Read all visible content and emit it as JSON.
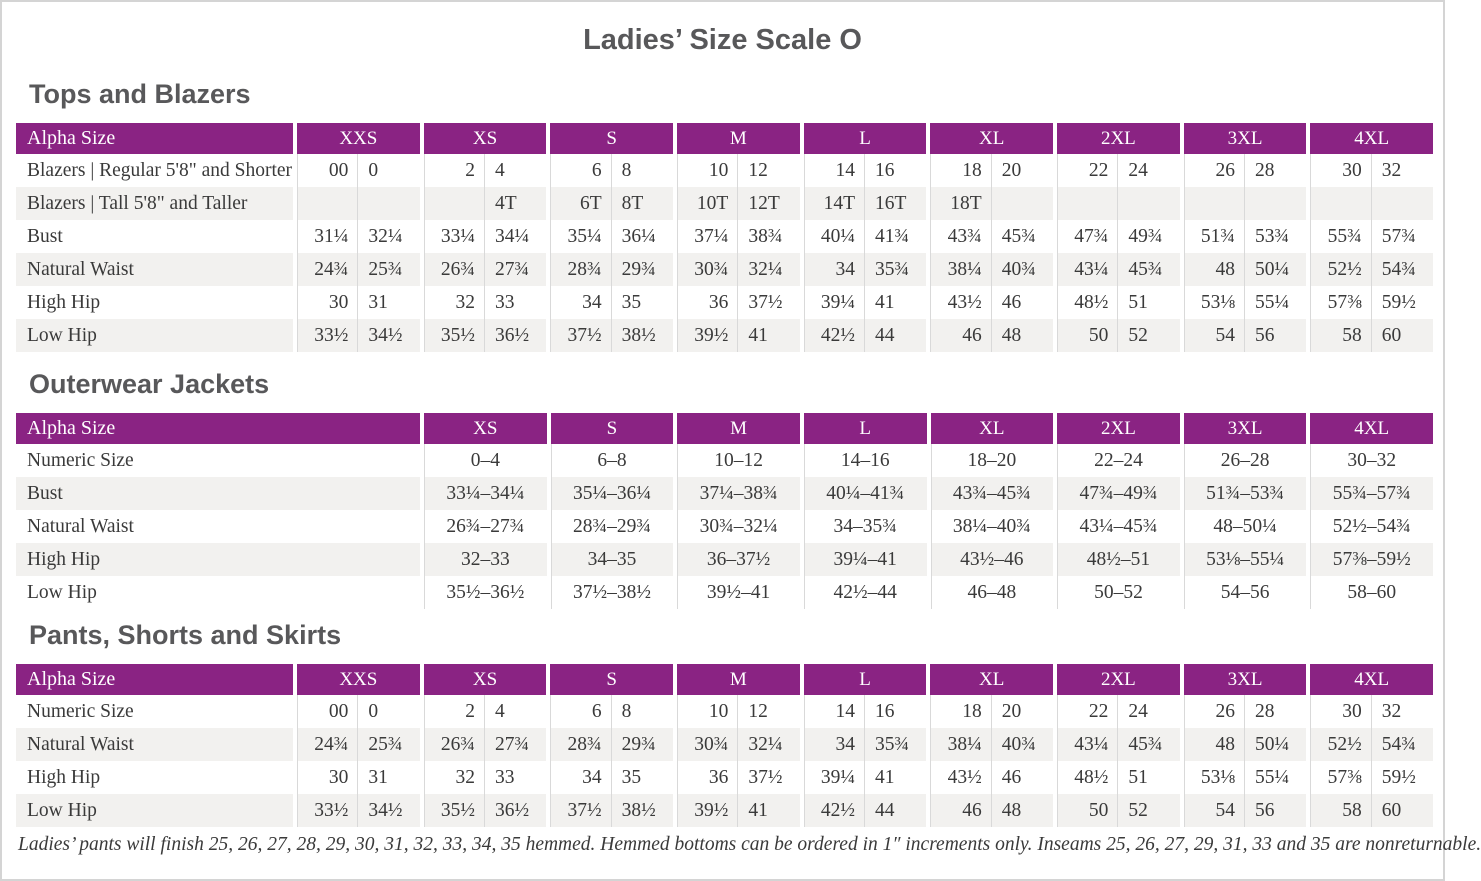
{
  "page": {
    "title": "Ladies’ Size Scale O",
    "footnote": "Ladies’ pants will finish 25, 26, 27, 28, 29, 30, 31, 32, 33, 34, 35 hemmed. Hemmed bottoms can be ordered in 1″ increments only. Inseams 25, 26, 27, 29, 31, 33 and 35 are nonreturnable."
  },
  "colors": {
    "header_bg": "#8a2383",
    "stripe": "#f2f1ef",
    "grid_line": "#d9d9d9",
    "body_text": "#3a3a3a",
    "heading_text": "#58585a"
  },
  "tables": [
    {
      "section_title": "Tops and Blazers",
      "type": "paired",
      "header_label": "Alpha Size",
      "sizes": [
        "XXS",
        "XS",
        "S",
        "M",
        "L",
        "XL",
        "2XL",
        "3XL",
        "4XL"
      ],
      "rows": [
        {
          "label": "Blazers  |  Regular 5'8\" and Shorter",
          "values": [
            "00",
            "0",
            "2",
            "4",
            "6",
            "8",
            "10",
            "12",
            "14",
            "16",
            "18",
            "20",
            "22",
            "24",
            "26",
            "28",
            "30",
            "32"
          ]
        },
        {
          "label": "Blazers  |  Tall 5'8\" and Taller",
          "values": [
            "",
            "",
            "",
            "4T",
            "6T",
            "8T",
            "10T",
            "12T",
            "14T",
            "16T",
            "18T",
            "",
            "",
            "",
            "",
            "",
            "",
            ""
          ]
        },
        {
          "label": "Bust",
          "values": [
            "31¼",
            "32¼",
            "33¼",
            "34¼",
            "35¼",
            "36¼",
            "37¼",
            "38¾",
            "40¼",
            "41¾",
            "43¾",
            "45¾",
            "47¾",
            "49¾",
            "51¾",
            "53¾",
            "55¾",
            "57¾"
          ]
        },
        {
          "label": "Natural Waist",
          "values": [
            "24¾",
            "25¾",
            "26¾",
            "27¾",
            "28¾",
            "29¾",
            "30¾",
            "32¼",
            "34",
            "35¾",
            "38¼",
            "40¾",
            "43¼",
            "45¾",
            "48",
            "50¼",
            "52½",
            "54¾"
          ]
        },
        {
          "label": "High Hip",
          "values": [
            "30",
            "31",
            "32",
            "33",
            "34",
            "35",
            "36",
            "37½",
            "39¼",
            "41",
            "43½",
            "46",
            "48½",
            "51",
            "53⅛",
            "55¼",
            "57⅜",
            "59½"
          ]
        },
        {
          "label": "Low Hip",
          "values": [
            "33½",
            "34½",
            "35½",
            "36½",
            "37½",
            "38½",
            "39½",
            "41",
            "42½",
            "44",
            "46",
            "48",
            "50",
            "52",
            "54",
            "56",
            "58",
            "60"
          ]
        }
      ]
    },
    {
      "section_title": "Outerwear Jackets",
      "type": "single",
      "header_label": "Alpha Size",
      "sizes": [
        "XS",
        "S",
        "M",
        "L",
        "XL",
        "2XL",
        "3XL",
        "4XL"
      ],
      "rows": [
        {
          "label": "Numeric Size",
          "values": [
            "0–4",
            "6–8",
            "10–12",
            "14–16",
            "18–20",
            "22–24",
            "26–28",
            "30–32"
          ]
        },
        {
          "label": "Bust",
          "values": [
            "33¼–34¼",
            "35¼–36¼",
            "37¼–38¾",
            "40¼–41¾",
            "43¾–45¾",
            "47¾–49¾",
            "51¾–53¾",
            "55¾–57¾"
          ]
        },
        {
          "label": "Natural Waist",
          "values": [
            "26¾–27¾",
            "28¾–29¾",
            "30¾–32¼",
            "34–35¾",
            "38¼–40¾",
            "43¼–45¾",
            "48–50¼",
            "52½–54¾"
          ]
        },
        {
          "label": "High Hip",
          "values": [
            "32–33",
            "34–35",
            "36–37½",
            "39¼–41",
            "43½–46",
            "48½–51",
            "53⅛–55¼",
            "57⅜–59½"
          ]
        },
        {
          "label": "Low Hip",
          "values": [
            "35½–36½",
            "37½–38½",
            "39½–41",
            "42½–44",
            "46–48",
            "50–52",
            "54–56",
            "58–60"
          ]
        }
      ]
    },
    {
      "section_title": "Pants, Shorts and Skirts",
      "type": "paired",
      "header_label": "Alpha Size",
      "sizes": [
        "XXS",
        "XS",
        "S",
        "M",
        "L",
        "XL",
        "2XL",
        "3XL",
        "4XL"
      ],
      "rows": [
        {
          "label": "Numeric Size",
          "values": [
            "00",
            "0",
            "2",
            "4",
            "6",
            "8",
            "10",
            "12",
            "14",
            "16",
            "18",
            "20",
            "22",
            "24",
            "26",
            "28",
            "30",
            "32"
          ]
        },
        {
          "label": "Natural Waist",
          "values": [
            "24¾",
            "25¾",
            "26¾",
            "27¾",
            "28¾",
            "29¾",
            "30¾",
            "32¼",
            "34",
            "35¾",
            "38¼",
            "40¾",
            "43¼",
            "45¾",
            "48",
            "50¼",
            "52½",
            "54¾"
          ]
        },
        {
          "label": "High Hip",
          "values": [
            "30",
            "31",
            "32",
            "33",
            "34",
            "35",
            "36",
            "37½",
            "39¼",
            "41",
            "43½",
            "46",
            "48½",
            "51",
            "53⅛",
            "55¼",
            "57⅜",
            "59½"
          ]
        },
        {
          "label": "Low Hip",
          "values": [
            "33½",
            "34½",
            "35½",
            "36½",
            "37½",
            "38½",
            "39½",
            "41",
            "42½",
            "44",
            "46",
            "48",
            "50",
            "52",
            "54",
            "56",
            "58",
            "60"
          ]
        }
      ]
    }
  ]
}
